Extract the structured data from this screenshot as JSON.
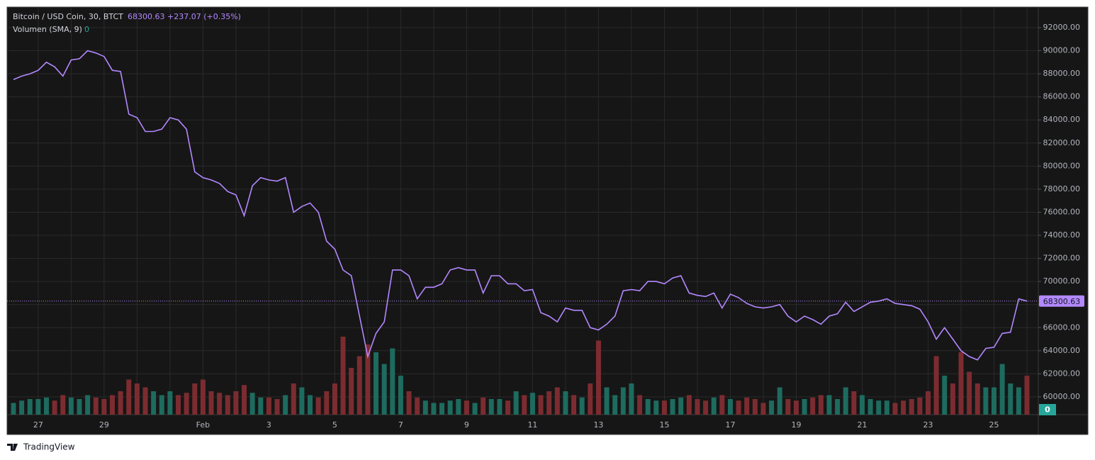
{
  "chart_data": {
    "type": "line",
    "title": "Bitcoin / USD Coin, 30, BTCT",
    "change_label": "+237.07 (+0.35%)",
    "categories": [
      null,
      null,
      null,
      "27",
      null,
      null,
      null,
      null,
      null,
      null,
      null,
      "29",
      null,
      null,
      null,
      null,
      null,
      null,
      null,
      null,
      null,
      null,
      null,
      "Feb",
      null,
      null,
      null,
      null,
      null,
      null,
      null,
      "3",
      null,
      null,
      null,
      null,
      null,
      null,
      null,
      "5",
      null,
      null,
      null,
      null,
      null,
      null,
      null,
      "7",
      null,
      null,
      null,
      null,
      null,
      null,
      null,
      "9",
      null,
      null,
      null,
      null,
      null,
      null,
      null,
      "11",
      null,
      null,
      null,
      null,
      null,
      null,
      null,
      "13",
      null,
      null,
      null,
      null,
      null,
      null,
      null,
      "15",
      null,
      null,
      null,
      null,
      null,
      null,
      null,
      "17",
      null,
      null,
      null,
      null,
      null,
      null,
      null,
      "19",
      null,
      null,
      null,
      null,
      null,
      null,
      null,
      "21",
      null,
      null,
      null,
      null,
      null,
      null,
      null,
      "23",
      null,
      null,
      null,
      null,
      null,
      null,
      null,
      "25",
      null,
      null,
      null,
      null
    ],
    "series": [
      {
        "color": "#b388ff",
        "values": [
          87500,
          87800,
          88000,
          88300,
          89000,
          88600,
          87800,
          89200,
          89300,
          90000,
          89800,
          89500,
          88300,
          88200,
          84500,
          84200,
          83000,
          83000,
          83200,
          84200,
          84000,
          83200,
          79500,
          79000,
          78800,
          78500,
          77800,
          77500,
          75700,
          78300,
          79000,
          78800,
          78700,
          79000,
          76000,
          76500,
          76800,
          76000,
          73500,
          72800,
          71000,
          70500,
          67000,
          63500,
          65500,
          66500,
          71000,
          71000,
          70500,
          68500,
          69500,
          69500,
          69800,
          71000,
          71200,
          71000,
          71000,
          69000,
          70500,
          70500,
          69800,
          69800,
          69200,
          69300,
          67300,
          67000,
          66500,
          67700,
          67500,
          67500,
          66000,
          65800,
          66300,
          67000,
          69200,
          69300,
          69200,
          70000,
          70000,
          69800,
          70300,
          70500,
          69000,
          68800,
          68700,
          69000,
          67700,
          68900,
          68600,
          68100,
          67800,
          67700,
          67800,
          68000,
          67000,
          66500,
          67000,
          66700,
          66300,
          67000,
          67200,
          68200,
          67400,
          67800,
          68200,
          68300,
          68500,
          68100,
          68000,
          67900,
          67600,
          66500,
          65000,
          66000,
          65000,
          64000,
          63500,
          63200,
          64200,
          64300,
          65500,
          65600,
          68500,
          68300.63
        ]
      },
      {
        "name": "Volumen (SMA, 9)",
        "axis": "y2",
        "legend_value": 0,
        "up_color": "#1e6b5f",
        "down_color": "#7c2c30",
        "values": [
          15,
          18,
          20,
          20,
          22,
          18,
          25,
          22,
          20,
          25,
          22,
          20,
          25,
          30,
          45,
          40,
          35,
          30,
          25,
          30,
          25,
          28,
          40,
          45,
          30,
          28,
          25,
          30,
          38,
          28,
          22,
          22,
          20,
          25,
          40,
          35,
          25,
          22,
          30,
          40,
          100,
          60,
          75,
          90,
          80,
          65,
          85,
          50,
          30,
          22,
          18,
          15,
          15,
          18,
          20,
          18,
          15,
          22,
          20,
          20,
          18,
          30,
          25,
          28,
          25,
          30,
          35,
          30,
          25,
          22,
          40,
          95,
          35,
          25,
          35,
          40,
          25,
          20,
          18,
          18,
          20,
          22,
          25,
          20,
          18,
          22,
          25,
          20,
          18,
          22,
          20,
          15,
          18,
          35,
          20,
          18,
          20,
          22,
          25,
          25,
          20,
          35,
          30,
          25,
          20,
          18,
          18,
          15,
          18,
          20,
          22,
          30,
          75,
          50,
          40,
          80,
          55,
          40,
          35,
          35,
          65,
          40,
          35,
          50
        ]
      }
    ],
    "ylim": [
      58460,
      93780
    ],
    "yticks": [
      {
        "value": 60000,
        "label": "60000.00"
      },
      {
        "value": 62000,
        "label": "62000.00"
      },
      {
        "value": 64000,
        "label": "64000.00"
      },
      {
        "value": 66000,
        "label": "66000.00"
      },
      {
        "value": 68000,
        "label": "68000.00"
      },
      {
        "value": 70000,
        "label": "70000.00"
      },
      {
        "value": 72000,
        "label": "72000.00"
      },
      {
        "value": 74000,
        "label": "74000.00"
      },
      {
        "value": 76000,
        "label": "76000.00"
      },
      {
        "value": 78000,
        "label": "78000.00"
      },
      {
        "value": 80000,
        "label": "80000.00"
      },
      {
        "value": 82000,
        "label": "82000.00"
      },
      {
        "value": 84000,
        "label": "84000.00"
      },
      {
        "value": 86000,
        "label": "86000.00"
      },
      {
        "value": 88000,
        "label": "88000.00"
      },
      {
        "value": 90000,
        "label": "90000.00"
      },
      {
        "value": 92000,
        "label": "92000.00"
      }
    ],
    "y2lim": [
      0,
      100
    ],
    "grid": true
  },
  "footer": {
    "brand": "TradingView"
  }
}
